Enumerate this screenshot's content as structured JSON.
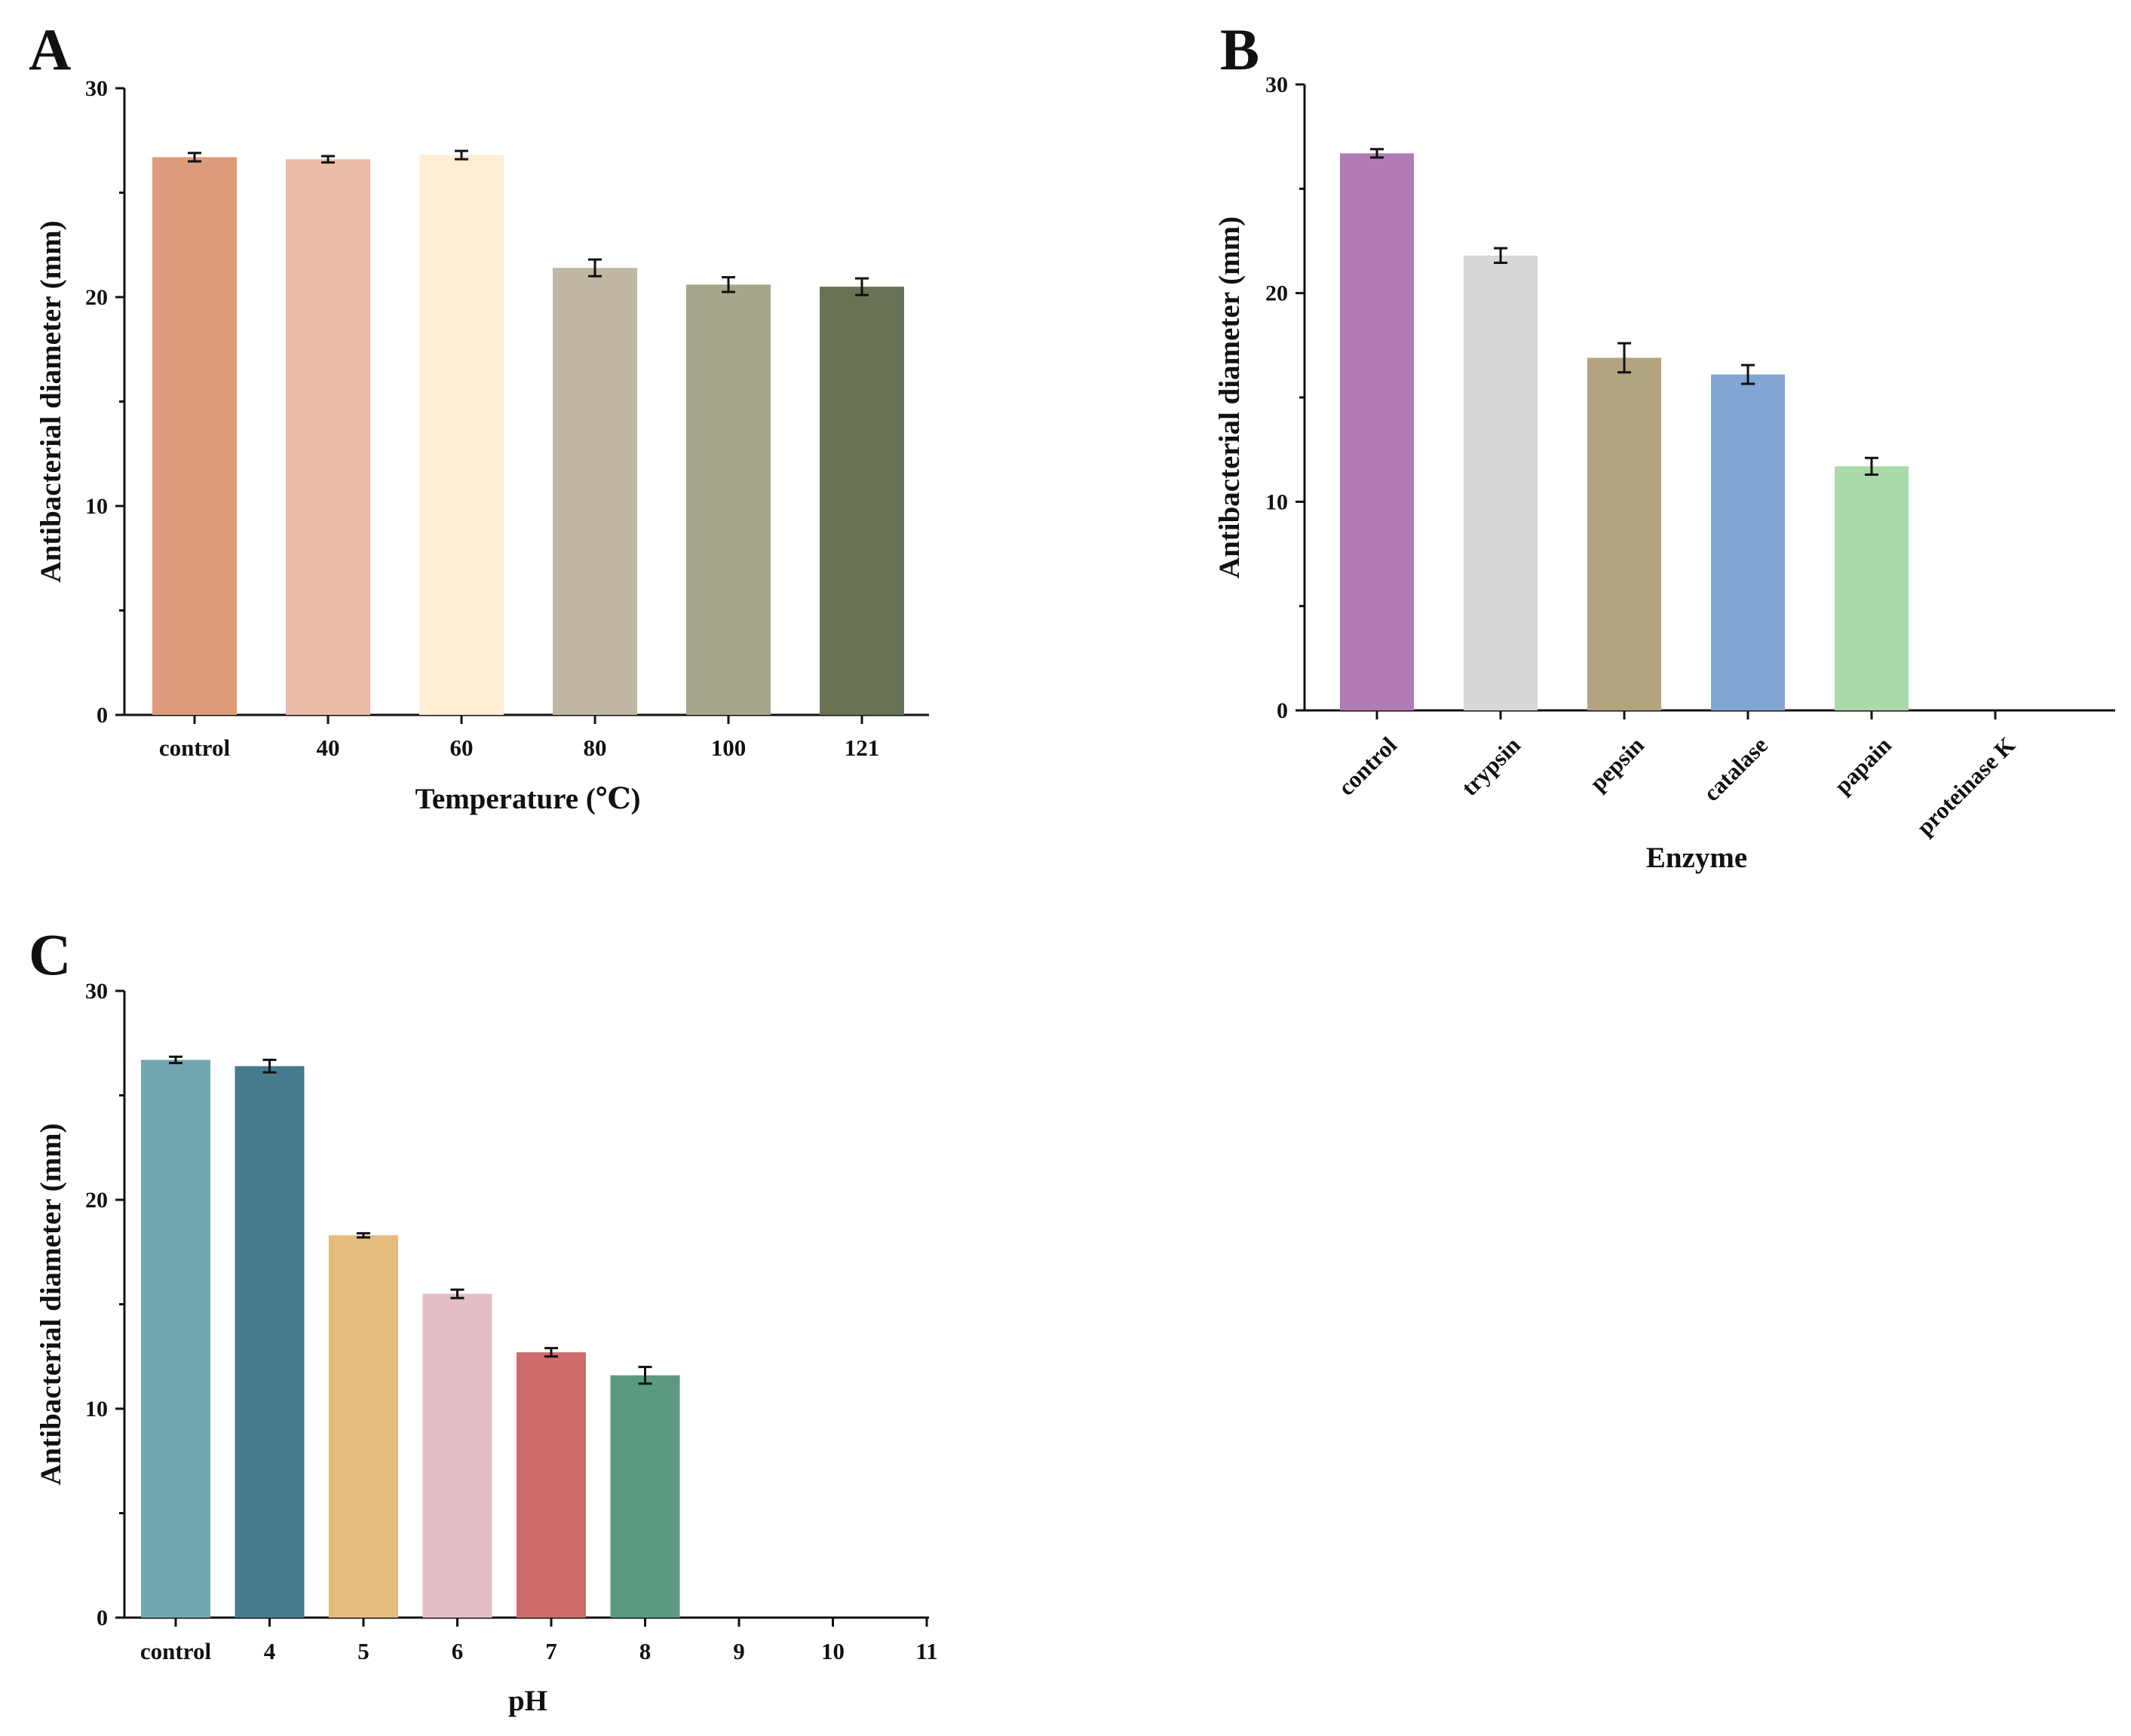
{
  "chart_data": [
    {
      "panel_label": "A",
      "type": "bar",
      "title": "",
      "xlabel": "Temperature (℃)",
      "ylabel": "Antibacterial diameter (mm)",
      "ylim": [
        0,
        30
      ],
      "yticks": [
        0,
        10,
        20,
        30
      ],
      "grid": false,
      "categories": [
        "control",
        "40",
        "60",
        "80",
        "100",
        "121"
      ],
      "values": [
        26.7,
        26.6,
        26.8,
        21.4,
        20.6,
        20.5
      ],
      "errors": [
        0.2,
        0.15,
        0.2,
        0.4,
        0.35,
        0.4
      ],
      "colors": [
        "#DD9B79",
        "#EABCAA",
        "#FFEED4",
        "#C1B8A4",
        "#A6A68A",
        "#677354"
      ]
    },
    {
      "panel_label": "B",
      "type": "bar",
      "title": "",
      "xlabel": "Enzyme",
      "ylabel": "Antibacterial diameter (mm)",
      "ylim": [
        0,
        30
      ],
      "yticks": [
        0,
        10,
        20,
        30
      ],
      "grid": false,
      "categories": [
        "control",
        "trypsin",
        "pepsin",
        "catalase",
        "papain",
        "proteinase K"
      ],
      "values": [
        26.7,
        21.8,
        16.9,
        16.1,
        11.7,
        0
      ],
      "errors": [
        0.2,
        0.35,
        0.7,
        0.45,
        0.4,
        0
      ],
      "colors": [
        "#B17CB6",
        "#D8D8D8",
        "#B2A47E",
        "#80A5D3",
        "#A8DAAA",
        "#cccccc"
      ]
    },
    {
      "panel_label": "C",
      "type": "bar",
      "title": "",
      "xlabel": "pH",
      "ylabel": "Antibacterial diameter (mm)",
      "ylim": [
        0,
        30
      ],
      "yticks": [
        0,
        10,
        20,
        30
      ],
      "grid": false,
      "categories": [
        "control",
        "4",
        "5",
        "6",
        "7",
        "8",
        "9",
        "10",
        "11"
      ],
      "values": [
        26.7,
        26.4,
        18.3,
        15.5,
        12.7,
        11.6,
        0,
        0,
        0
      ],
      "errors": [
        0.15,
        0.3,
        0.1,
        0.2,
        0.2,
        0.4,
        0,
        0,
        0
      ],
      "colors": [
        "#74A6B0",
        "#477A8C",
        "#E3BC7E",
        "#E4BDC7",
        "#CD6C6A",
        "#5B9A81",
        "#999999",
        "#999999",
        "#999999"
      ]
    }
  ]
}
